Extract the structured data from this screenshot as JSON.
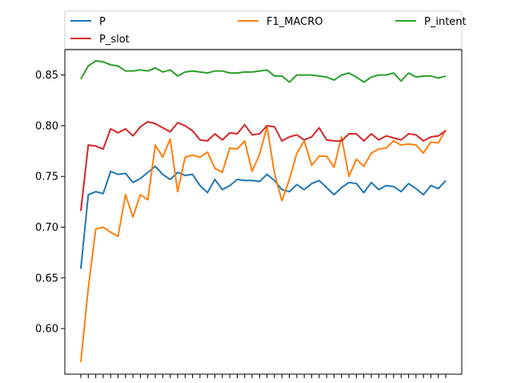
{
  "chart_data": {
    "type": "line",
    "ylim": [
      0.555,
      0.875
    ],
    "yticks": [
      0.6,
      0.65,
      0.7,
      0.75,
      0.8,
      0.85
    ],
    "ytick_labels": [
      "0.60",
      "0.65",
      "0.70",
      "0.75",
      "0.80",
      "0.85"
    ],
    "x_count": 50,
    "x": [
      1,
      2,
      3,
      4,
      5,
      6,
      7,
      8,
      9,
      10,
      11,
      12,
      13,
      14,
      15,
      16,
      17,
      18,
      19,
      20,
      21,
      22,
      23,
      24,
      25,
      26,
      27,
      28,
      29,
      30,
      31,
      32,
      33,
      34,
      35,
      36,
      37,
      38,
      39,
      40,
      41,
      42,
      43,
      44,
      45,
      46,
      47,
      48,
      49,
      50
    ],
    "xtick_labels_shown": false,
    "grid": false,
    "legend": {
      "placement": "top",
      "columns": 3
    },
    "series": [
      {
        "name": "P",
        "color": "#1f77b4",
        "values": [
          0.659,
          0.732,
          0.735,
          0.733,
          0.755,
          0.752,
          0.753,
          0.744,
          0.748,
          0.754,
          0.76,
          0.752,
          0.747,
          0.754,
          0.751,
          0.752,
          0.741,
          0.734,
          0.747,
          0.737,
          0.741,
          0.747,
          0.746,
          0.746,
          0.745,
          0.752,
          0.746,
          0.737,
          0.735,
          0.742,
          0.737,
          0.743,
          0.746,
          0.739,
          0.732,
          0.739,
          0.744,
          0.743,
          0.734,
          0.744,
          0.737,
          0.741,
          0.74,
          0.735,
          0.743,
          0.738,
          0.732,
          0.741,
          0.738,
          0.746
        ]
      },
      {
        "name": "F1_MACRO",
        "color": "#ff7f0e",
        "values": [
          0.567,
          0.64,
          0.698,
          0.7,
          0.695,
          0.691,
          0.732,
          0.71,
          0.732,
          0.727,
          0.781,
          0.769,
          0.787,
          0.735,
          0.769,
          0.771,
          0.769,
          0.774,
          0.758,
          0.754,
          0.778,
          0.777,
          0.785,
          0.755,
          0.772,
          0.799,
          0.753,
          0.726,
          0.747,
          0.773,
          0.785,
          0.761,
          0.77,
          0.77,
          0.759,
          0.789,
          0.75,
          0.767,
          0.76,
          0.773,
          0.777,
          0.778,
          0.785,
          0.781,
          0.782,
          0.781,
          0.773,
          0.784,
          0.783,
          0.796
        ]
      },
      {
        "name": "P_intent",
        "color": "#2ca02c",
        "values": [
          0.846,
          0.859,
          0.864,
          0.863,
          0.86,
          0.859,
          0.854,
          0.854,
          0.855,
          0.854,
          0.857,
          0.853,
          0.855,
          0.849,
          0.853,
          0.854,
          0.853,
          0.852,
          0.854,
          0.854,
          0.852,
          0.852,
          0.853,
          0.853,
          0.854,
          0.855,
          0.849,
          0.849,
          0.843,
          0.85,
          0.85,
          0.85,
          0.849,
          0.848,
          0.845,
          0.85,
          0.852,
          0.848,
          0.843,
          0.848,
          0.85,
          0.85,
          0.852,
          0.844,
          0.852,
          0.848,
          0.849,
          0.849,
          0.847,
          0.849
        ]
      },
      {
        "name": "P_slot",
        "color": "#d62728",
        "values": [
          0.716,
          0.781,
          0.78,
          0.777,
          0.797,
          0.793,
          0.797,
          0.79,
          0.799,
          0.804,
          0.802,
          0.798,
          0.794,
          0.803,
          0.8,
          0.795,
          0.786,
          0.785,
          0.792,
          0.786,
          0.793,
          0.792,
          0.801,
          0.791,
          0.792,
          0.8,
          0.799,
          0.785,
          0.789,
          0.791,
          0.786,
          0.789,
          0.798,
          0.786,
          0.785,
          0.785,
          0.792,
          0.792,
          0.785,
          0.792,
          0.786,
          0.79,
          0.788,
          0.786,
          0.792,
          0.791,
          0.785,
          0.789,
          0.79,
          0.795
        ]
      }
    ]
  }
}
